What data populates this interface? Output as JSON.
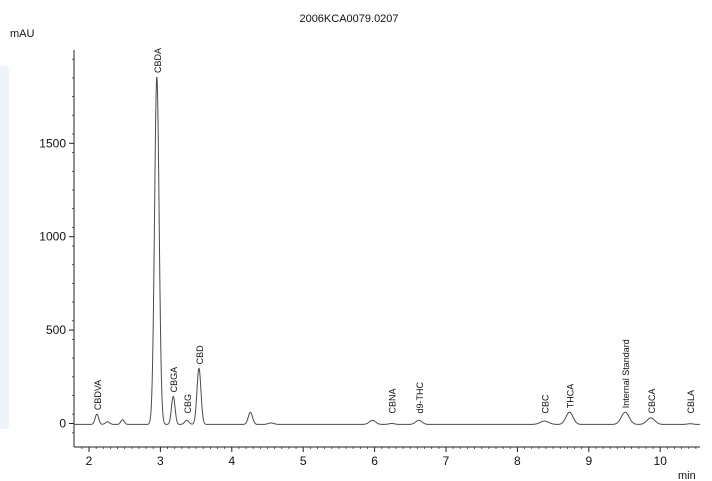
{
  "chart_data": {
    "type": "line",
    "title": "2006KCA0079.0207",
    "ylabel": "mAU",
    "xlabel": "min",
    "xlim": [
      1.8,
      10.6
    ],
    "ylim": [
      -50,
      1980
    ],
    "x_ticks": [
      2,
      3,
      4,
      5,
      6,
      7,
      8,
      9,
      10
    ],
    "y_ticks": [
      0,
      500,
      1000,
      1500
    ],
    "grid": false,
    "line_color": "#4a4a4a",
    "baseline": -5,
    "peaks": [
      {
        "rt": 2.11,
        "height": 55,
        "width": 0.025,
        "label": "CBDVA"
      },
      {
        "rt": 2.26,
        "height": 14,
        "width": 0.03,
        "label": ""
      },
      {
        "rt": 2.47,
        "height": 25,
        "width": 0.025,
        "label": ""
      },
      {
        "rt": 2.95,
        "height": 1860,
        "width": 0.032,
        "label": "CBDA"
      },
      {
        "rt": 3.18,
        "height": 150,
        "width": 0.025,
        "label": "CBGA"
      },
      {
        "rt": 3.37,
        "height": 22,
        "width": 0.03,
        "label": "CBG"
      },
      {
        "rt": 3.54,
        "height": 300,
        "width": 0.028,
        "label": "CBD"
      },
      {
        "rt": 4.26,
        "height": 65,
        "width": 0.03,
        "label": ""
      },
      {
        "rt": 4.55,
        "height": 8,
        "width": 0.04,
        "label": ""
      },
      {
        "rt": 5.97,
        "height": 22,
        "width": 0.045,
        "label": ""
      },
      {
        "rt": 6.24,
        "height": 5,
        "width": 0.04,
        "label": "CBNA"
      },
      {
        "rt": 6.62,
        "height": 22,
        "width": 0.045,
        "label": "d9-THC"
      },
      {
        "rt": 8.38,
        "height": 18,
        "width": 0.06,
        "label": "CBC"
      },
      {
        "rt": 8.73,
        "height": 65,
        "width": 0.05,
        "label": "THCA"
      },
      {
        "rt": 9.51,
        "height": 65,
        "width": 0.055,
        "label": "Internal Standard"
      },
      {
        "rt": 9.87,
        "height": 35,
        "width": 0.055,
        "label": "CBCA"
      },
      {
        "rt": 10.42,
        "height": 4,
        "width": 0.04,
        "label": "CBLA"
      }
    ]
  }
}
